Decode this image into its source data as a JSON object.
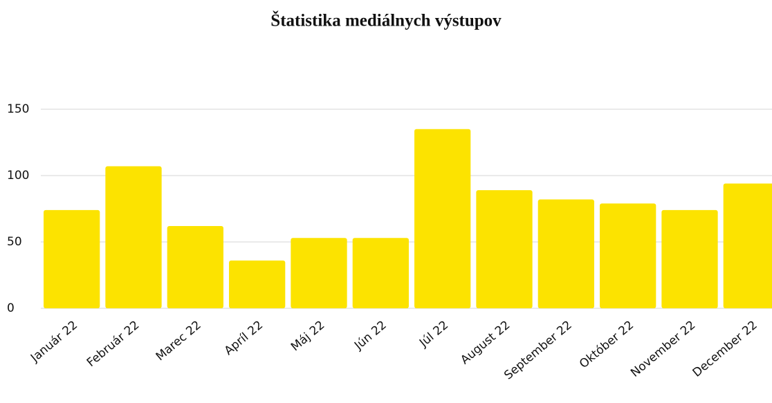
{
  "chart_data": {
    "type": "bar",
    "title": "Štatistika mediálnych výstupov",
    "categories": [
      "Január 22",
      "Február 22",
      "Marec 22",
      "Apríl 22",
      "Máj 22",
      "Jún 22",
      "Júl 22",
      "August 22",
      "September 22",
      "Október 22",
      "November 22",
      "December 22"
    ],
    "values": [
      74,
      107,
      62,
      36,
      53,
      53,
      135,
      89,
      82,
      79,
      74,
      94
    ],
    "color": "#fce300",
    "ylim": [
      0,
      150
    ],
    "yticks": [
      0,
      50,
      100,
      150
    ],
    "grid": true
  }
}
